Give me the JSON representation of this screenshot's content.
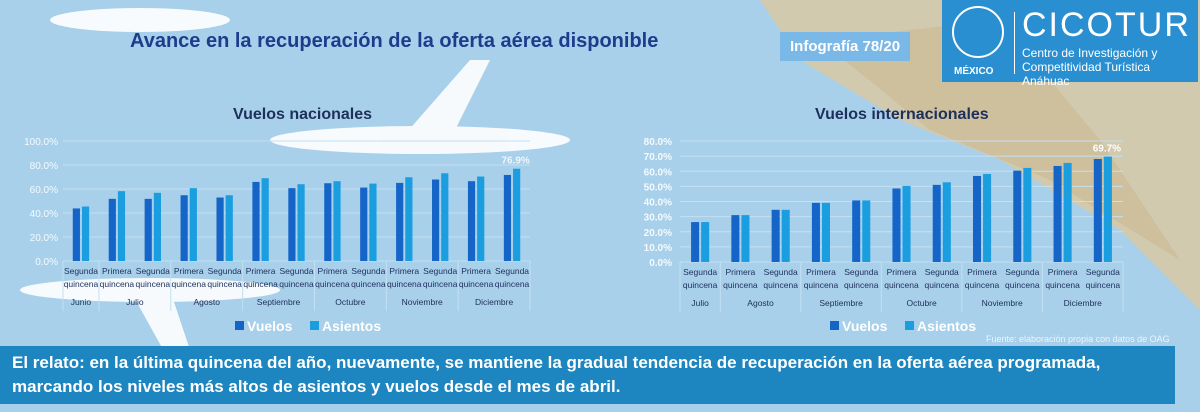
{
  "header": {
    "title": "Avance en la recuperación de la oferta aérea disponible",
    "badge": "Infografía 78/20"
  },
  "logo": {
    "brand": "CICOTUR",
    "subtitle_1": "Centro de Investigación y",
    "subtitle_2": "Competitividad Turística Anáhuac",
    "university": "UNIVERSIDAD ANÁHUAC",
    "country": "MÉXICO"
  },
  "colors": {
    "vuelos": "#1565c8",
    "asientos": "#1a9ee0",
    "background": "#a8d0ea",
    "banner": "#1d85bf"
  },
  "source": "Fuente: elaboración propia con datos de OAG",
  "banner_text": "El relato: en la última quincena del año, nuevamente, se mantiene la gradual tendencia de recuperación en la oferta aérea programada, marcando los niveles más altos de asientos y vuelos desde el mes de abril.",
  "chart_data": [
    {
      "type": "bar",
      "title": "Vuelos nacionales",
      "ylim": [
        0,
        100
      ],
      "yticks": [
        "0.0%",
        "20.0%",
        "40.0%",
        "60.0%",
        "80.0%",
        "100.0%"
      ],
      "categories": [
        "Segunda quincena",
        "Primera quincena",
        "Segunda quincena",
        "Primera quincena",
        "Segunda quincena",
        "Primera quincena",
        "Segunda quincena",
        "Primera quincena",
        "Segunda quincena",
        "Primera quincena",
        "Segunda quincena",
        "Primera quincena",
        "Segunda quincena"
      ],
      "groups": [
        {
          "label": "Junio",
          "span": 1
        },
        {
          "label": "Julio",
          "span": 2
        },
        {
          "label": "Agosto",
          "span": 2
        },
        {
          "label": "Septiembre",
          "span": 2
        },
        {
          "label": "Octubre",
          "span": 2
        },
        {
          "label": "Noviembre",
          "span": 2
        },
        {
          "label": "Diciembre",
          "span": 2
        }
      ],
      "series": [
        {
          "name": "Vuelos",
          "values": [
            43.8,
            51.8,
            51.8,
            54.8,
            52.9,
            65.9,
            60.7,
            64.8,
            61.2,
            65.1,
            67.9,
            66.5,
            71.7
          ]
        },
        {
          "name": "Asientos",
          "values": [
            45.4,
            58.2,
            56.8,
            60.7,
            54.8,
            69.0,
            64.0,
            66.5,
            64.5,
            69.8,
            73.1,
            70.4,
            76.9
          ]
        }
      ],
      "data_label": "76.9%",
      "legend": "bottom"
    },
    {
      "type": "bar",
      "title": "Vuelos internacionales",
      "ylim": [
        0,
        80
      ],
      "yticks": [
        "0.0%",
        "10.0%",
        "20.0%",
        "30.0%",
        "40.0%",
        "50.0%",
        "60.0%",
        "70.0%",
        "80.0%"
      ],
      "categories": [
        "Segunda quincena",
        "Primera quincena",
        "Segunda quincena",
        "Primera quincena",
        "Segunda quincena",
        "Primera quincena",
        "Segunda quincena",
        "Primera quincena",
        "Segunda quincena",
        "Primera quincena",
        "Segunda quincena"
      ],
      "groups": [
        {
          "label": "Julio",
          "span": 1
        },
        {
          "label": "Agosto",
          "span": 2
        },
        {
          "label": "Septiembre",
          "span": 2
        },
        {
          "label": "Octubre",
          "span": 2
        },
        {
          "label": "Noviembre",
          "span": 2
        },
        {
          "label": "Diciembre",
          "span": 2
        }
      ],
      "series": [
        {
          "name": "Vuelos",
          "values": [
            26.4,
            31.0,
            34.5,
            39.1,
            40.7,
            48.6,
            51.0,
            56.9,
            60.4,
            63.5,
            68.1
          ]
        },
        {
          "name": "Asientos",
          "values": [
            26.4,
            31.0,
            34.5,
            39.1,
            40.7,
            50.3,
            52.7,
            58.2,
            62.2,
            65.5,
            69.7
          ]
        }
      ],
      "data_label": "69.7%",
      "legend": "bottom"
    }
  ]
}
